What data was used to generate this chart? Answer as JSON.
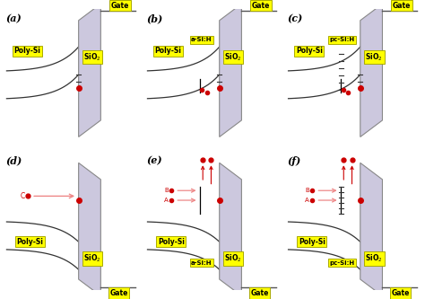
{
  "panels": [
    "(a)",
    "(b)",
    "(c)",
    "(d)",
    "(e)",
    "(f)"
  ],
  "extras": [
    null,
    "a-Si:H",
    "pc-Si:H",
    null,
    "a-Si:H",
    "pc-Si:H"
  ],
  "bottom_row": [
    false,
    false,
    false,
    true,
    true,
    true
  ],
  "panel_bg": "#ccc8de",
  "panel_edge": "#888888",
  "yellow": "#ffff00",
  "yellow_edge": "#aaaa00",
  "red": "#cc0000",
  "pink_arrow": "#ee8888",
  "curve_color": "#555555",
  "gate_color": "#555555",
  "fig_bg": "#ffffff",
  "text_color": "#000000",
  "band_color": "#333333"
}
